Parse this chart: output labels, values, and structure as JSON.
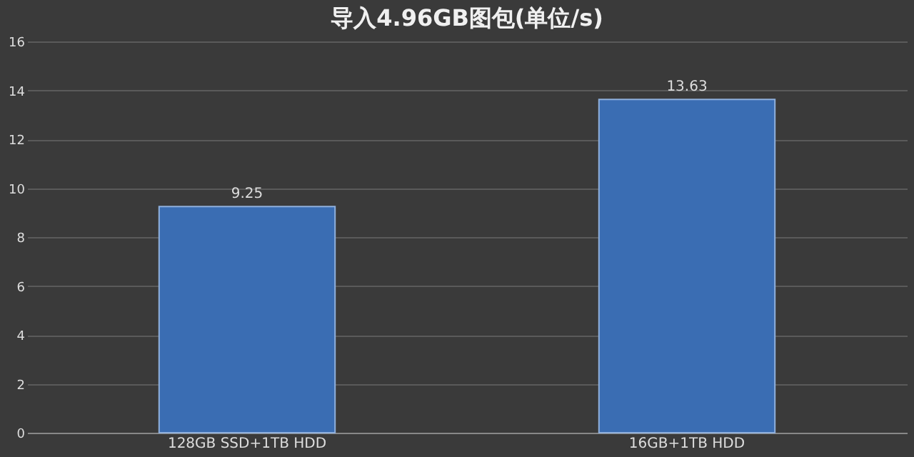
{
  "chart_data": {
    "type": "bar",
    "title": "导入4.96GB图包(单位/s)",
    "categories": [
      "128GB SSD+1TB HDD",
      "16GB+1TB HDD"
    ],
    "values": [
      9.25,
      13.63
    ],
    "color": "#3a6db3",
    "ylim": [
      0,
      16
    ],
    "yticks": [
      0,
      2,
      4,
      6,
      8,
      10,
      12,
      14,
      16
    ],
    "grid": "y",
    "data_labels": true
  }
}
